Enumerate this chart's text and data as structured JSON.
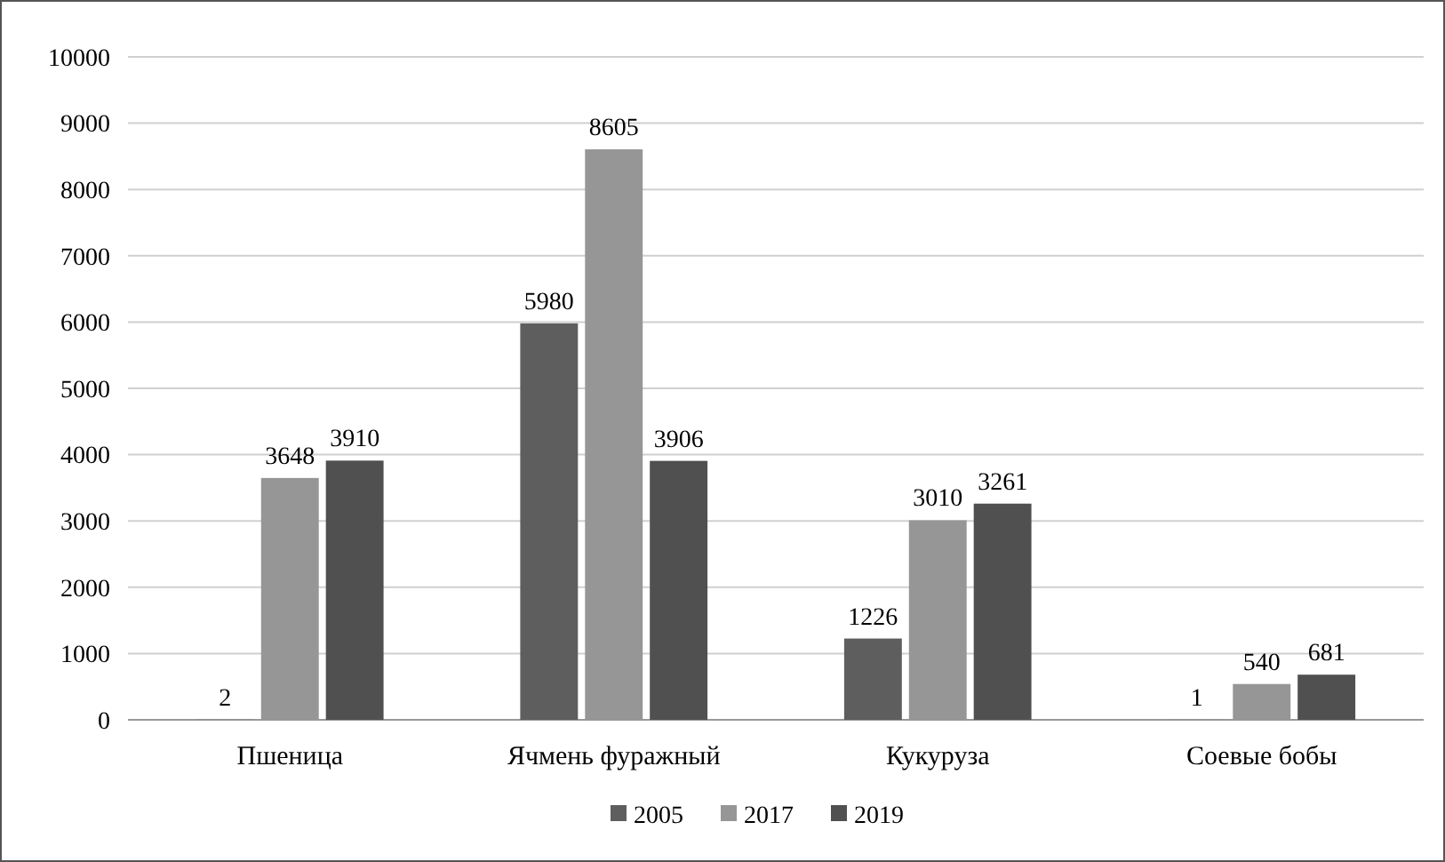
{
  "chart_data": {
    "type": "bar",
    "categories": [
      "Пшеница",
      "Ячмень фуражный",
      "Кукуруза",
      "Соевые бобы"
    ],
    "series": [
      {
        "name": "2005",
        "color": "#5e5e5e",
        "values": [
          2,
          5980,
          1226,
          1
        ]
      },
      {
        "name": "2017",
        "color": "#969696",
        "values": [
          3648,
          8605,
          3010,
          540
        ]
      },
      {
        "name": "2019",
        "color": "#505050",
        "values": [
          3910,
          3906,
          3261,
          681
        ]
      }
    ],
    "ylim": [
      0,
      10000
    ],
    "yticks": [
      0,
      1000,
      2000,
      3000,
      4000,
      5000,
      6000,
      7000,
      8000,
      9000,
      10000
    ],
    "grid": "y",
    "legend": "bottom",
    "data_labels": true
  }
}
